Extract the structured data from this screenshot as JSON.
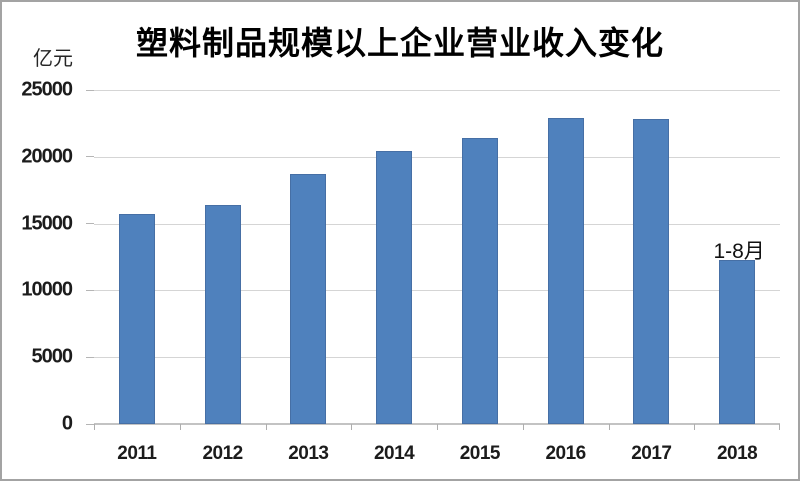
{
  "title": "塑料制品规模以上企业营业收入变化",
  "y_axis_unit": "亿元",
  "colors": {
    "bar_fill": "#4f81bd",
    "bar_edge": "#466fa5",
    "gridline": "#d5d5d5",
    "axis": "#c3c3c3",
    "text": "#1c1c1c"
  },
  "chart_data": {
    "type": "bar",
    "title": "塑料制品规模以上企业营业收入变化",
    "categories": [
      "2011",
      "2012",
      "2013",
      "2014",
      "2015",
      "2016",
      "2017",
      "2018"
    ],
    "values": [
      15700,
      16400,
      18700,
      20400,
      21400,
      22900,
      22800,
      12300
    ],
    "xlabel": "",
    "ylabel": "亿元",
    "ylim": [
      0,
      25000
    ],
    "yticks": [
      0,
      5000,
      10000,
      15000,
      20000,
      25000
    ],
    "ytick_labels": [
      "0",
      "5000",
      "10000",
      "15000",
      "20000",
      "25000"
    ],
    "grid": true,
    "legend": "none",
    "annotations": [
      {
        "text": "1-8月",
        "category": "2018",
        "position": "above-bar"
      }
    ]
  }
}
